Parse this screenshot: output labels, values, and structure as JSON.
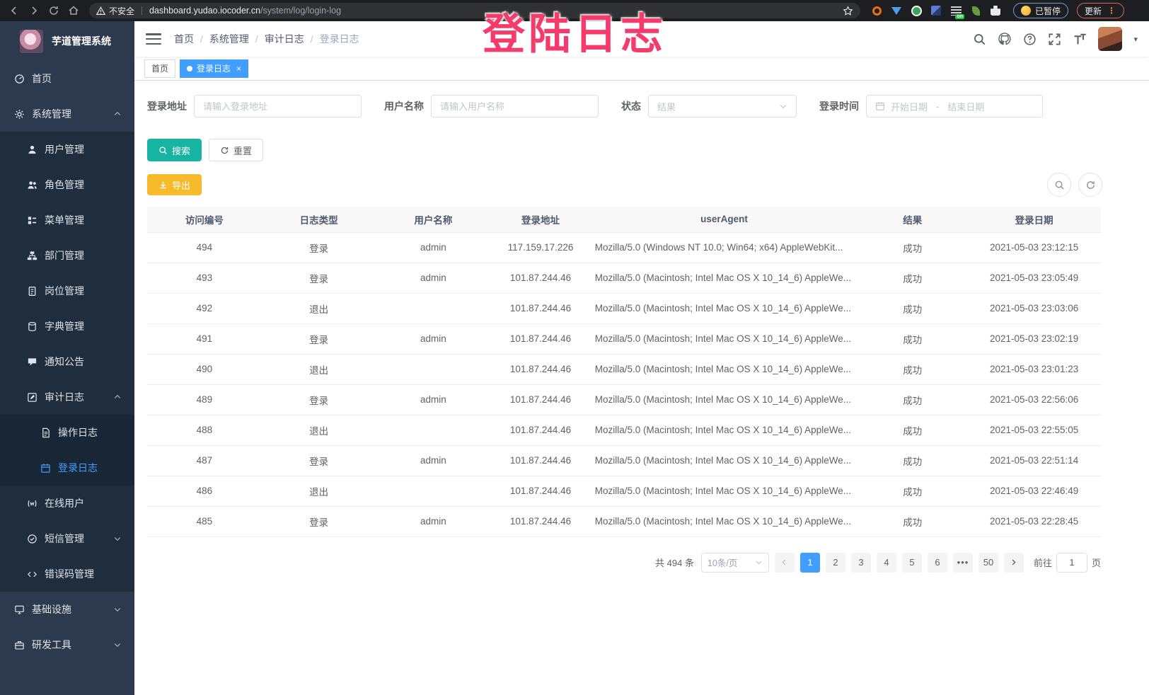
{
  "browser": {
    "security_label": "不安全",
    "url_host": "dashboard.yudao.iocoder.cn",
    "url_path": "/system/log/login-log",
    "paused_label": "已暂停",
    "update_label": "更新"
  },
  "annotation": {
    "text": "登陆日志",
    "color": "#f43b6c"
  },
  "sidebar": {
    "logo_title": "芋道管理系统",
    "items": [
      {
        "label": "首页",
        "icon": "dashboard-icon",
        "level": 0
      },
      {
        "label": "系统管理",
        "icon": "gear-icon",
        "level": 0,
        "expand": "up"
      },
      {
        "label": "用户管理",
        "icon": "user-icon",
        "level": 1
      },
      {
        "label": "角色管理",
        "icon": "users-icon",
        "level": 1
      },
      {
        "label": "菜单管理",
        "icon": "menu-icon",
        "level": 1
      },
      {
        "label": "部门管理",
        "icon": "tree-icon",
        "level": 1
      },
      {
        "label": "岗位管理",
        "icon": "badge-icon",
        "level": 1
      },
      {
        "label": "字典管理",
        "icon": "book-icon",
        "level": 1
      },
      {
        "label": "通知公告",
        "icon": "megaphone-icon",
        "level": 1
      },
      {
        "label": "审计日志",
        "icon": "edit-icon",
        "level": 1,
        "expand": "up"
      },
      {
        "label": "操作日志",
        "icon": "document-icon",
        "level": 2
      },
      {
        "label": "登录日志",
        "icon": "calendar-icon",
        "level": 2,
        "active": true
      },
      {
        "label": "在线用户",
        "icon": "online-icon",
        "level": 1
      },
      {
        "label": "短信管理",
        "icon": "sms-icon",
        "level": 1,
        "expand": "down"
      },
      {
        "label": "错误码管理",
        "icon": "code-icon",
        "level": 1
      },
      {
        "label": "基础设施",
        "icon": "infra-icon",
        "level": 0,
        "expand": "down"
      },
      {
        "label": "研发工具",
        "icon": "tools-icon",
        "level": 0,
        "expand": "down"
      }
    ]
  },
  "header": {
    "breadcrumb": [
      "首页",
      "系统管理",
      "审计日志",
      "登录日志"
    ]
  },
  "tabs": [
    {
      "label": "首页",
      "active": false,
      "closable": false
    },
    {
      "label": "登录日志",
      "active": true,
      "closable": true
    }
  ],
  "filters": {
    "address": {
      "label": "登录地址",
      "placeholder": "请输入登录地址"
    },
    "username": {
      "label": "用户名称",
      "placeholder": "请输入用户名称"
    },
    "status": {
      "label": "状态",
      "placeholder": "结果"
    },
    "time": {
      "label": "登录时间",
      "start_placeholder": "开始日期",
      "separator": "-",
      "end_placeholder": "结束日期"
    }
  },
  "actions": {
    "search": "搜索",
    "reset": "重置",
    "export": "导出"
  },
  "table": {
    "headers": [
      "访问编号",
      "日志类型",
      "用户名称",
      "登录地址",
      "userAgent",
      "结果",
      "登录日期"
    ],
    "rows": [
      [
        "494",
        "登录",
        "admin",
        "117.159.17.226",
        "Mozilla/5.0 (Windows NT 10.0; Win64; x64) AppleWebKit...",
        "成功",
        "2021-05-03 23:12:15"
      ],
      [
        "493",
        "登录",
        "admin",
        "101.87.244.46",
        "Mozilla/5.0 (Macintosh; Intel Mac OS X 10_14_6) AppleWe...",
        "成功",
        "2021-05-03 23:05:49"
      ],
      [
        "492",
        "退出",
        "",
        "101.87.244.46",
        "Mozilla/5.0 (Macintosh; Intel Mac OS X 10_14_6) AppleWe...",
        "成功",
        "2021-05-03 23:03:06"
      ],
      [
        "491",
        "登录",
        "admin",
        "101.87.244.46",
        "Mozilla/5.0 (Macintosh; Intel Mac OS X 10_14_6) AppleWe...",
        "成功",
        "2021-05-03 23:02:19"
      ],
      [
        "490",
        "退出",
        "",
        "101.87.244.46",
        "Mozilla/5.0 (Macintosh; Intel Mac OS X 10_14_6) AppleWe...",
        "成功",
        "2021-05-03 23:01:23"
      ],
      [
        "489",
        "登录",
        "admin",
        "101.87.244.46",
        "Mozilla/5.0 (Macintosh; Intel Mac OS X 10_14_6) AppleWe...",
        "成功",
        "2021-05-03 22:56:06"
      ],
      [
        "488",
        "退出",
        "",
        "101.87.244.46",
        "Mozilla/5.0 (Macintosh; Intel Mac OS X 10_14_6) AppleWe...",
        "成功",
        "2021-05-03 22:55:05"
      ],
      [
        "487",
        "登录",
        "admin",
        "101.87.244.46",
        "Mozilla/5.0 (Macintosh; Intel Mac OS X 10_14_6) AppleWe...",
        "成功",
        "2021-05-03 22:51:14"
      ],
      [
        "486",
        "退出",
        "",
        "101.87.244.46",
        "Mozilla/5.0 (Macintosh; Intel Mac OS X 10_14_6) AppleWe...",
        "成功",
        "2021-05-03 22:46:49"
      ],
      [
        "485",
        "登录",
        "admin",
        "101.87.244.46",
        "Mozilla/5.0 (Macintosh; Intel Mac OS X 10_14_6) AppleWe...",
        "成功",
        "2021-05-03 22:28:45"
      ]
    ]
  },
  "pagination": {
    "total": "共 494 条",
    "page_size": "10条/页",
    "pages": [
      "1",
      "2",
      "3",
      "4",
      "5",
      "6",
      "•••",
      "50"
    ],
    "active_page": "1",
    "goto_label": "前往",
    "goto_value": "1",
    "page_unit": "页"
  },
  "colors": {
    "accent": "#409eff",
    "search_button": "#17b3a3",
    "export_button": "#f7ba2a",
    "annotation": "#f43b6c"
  }
}
